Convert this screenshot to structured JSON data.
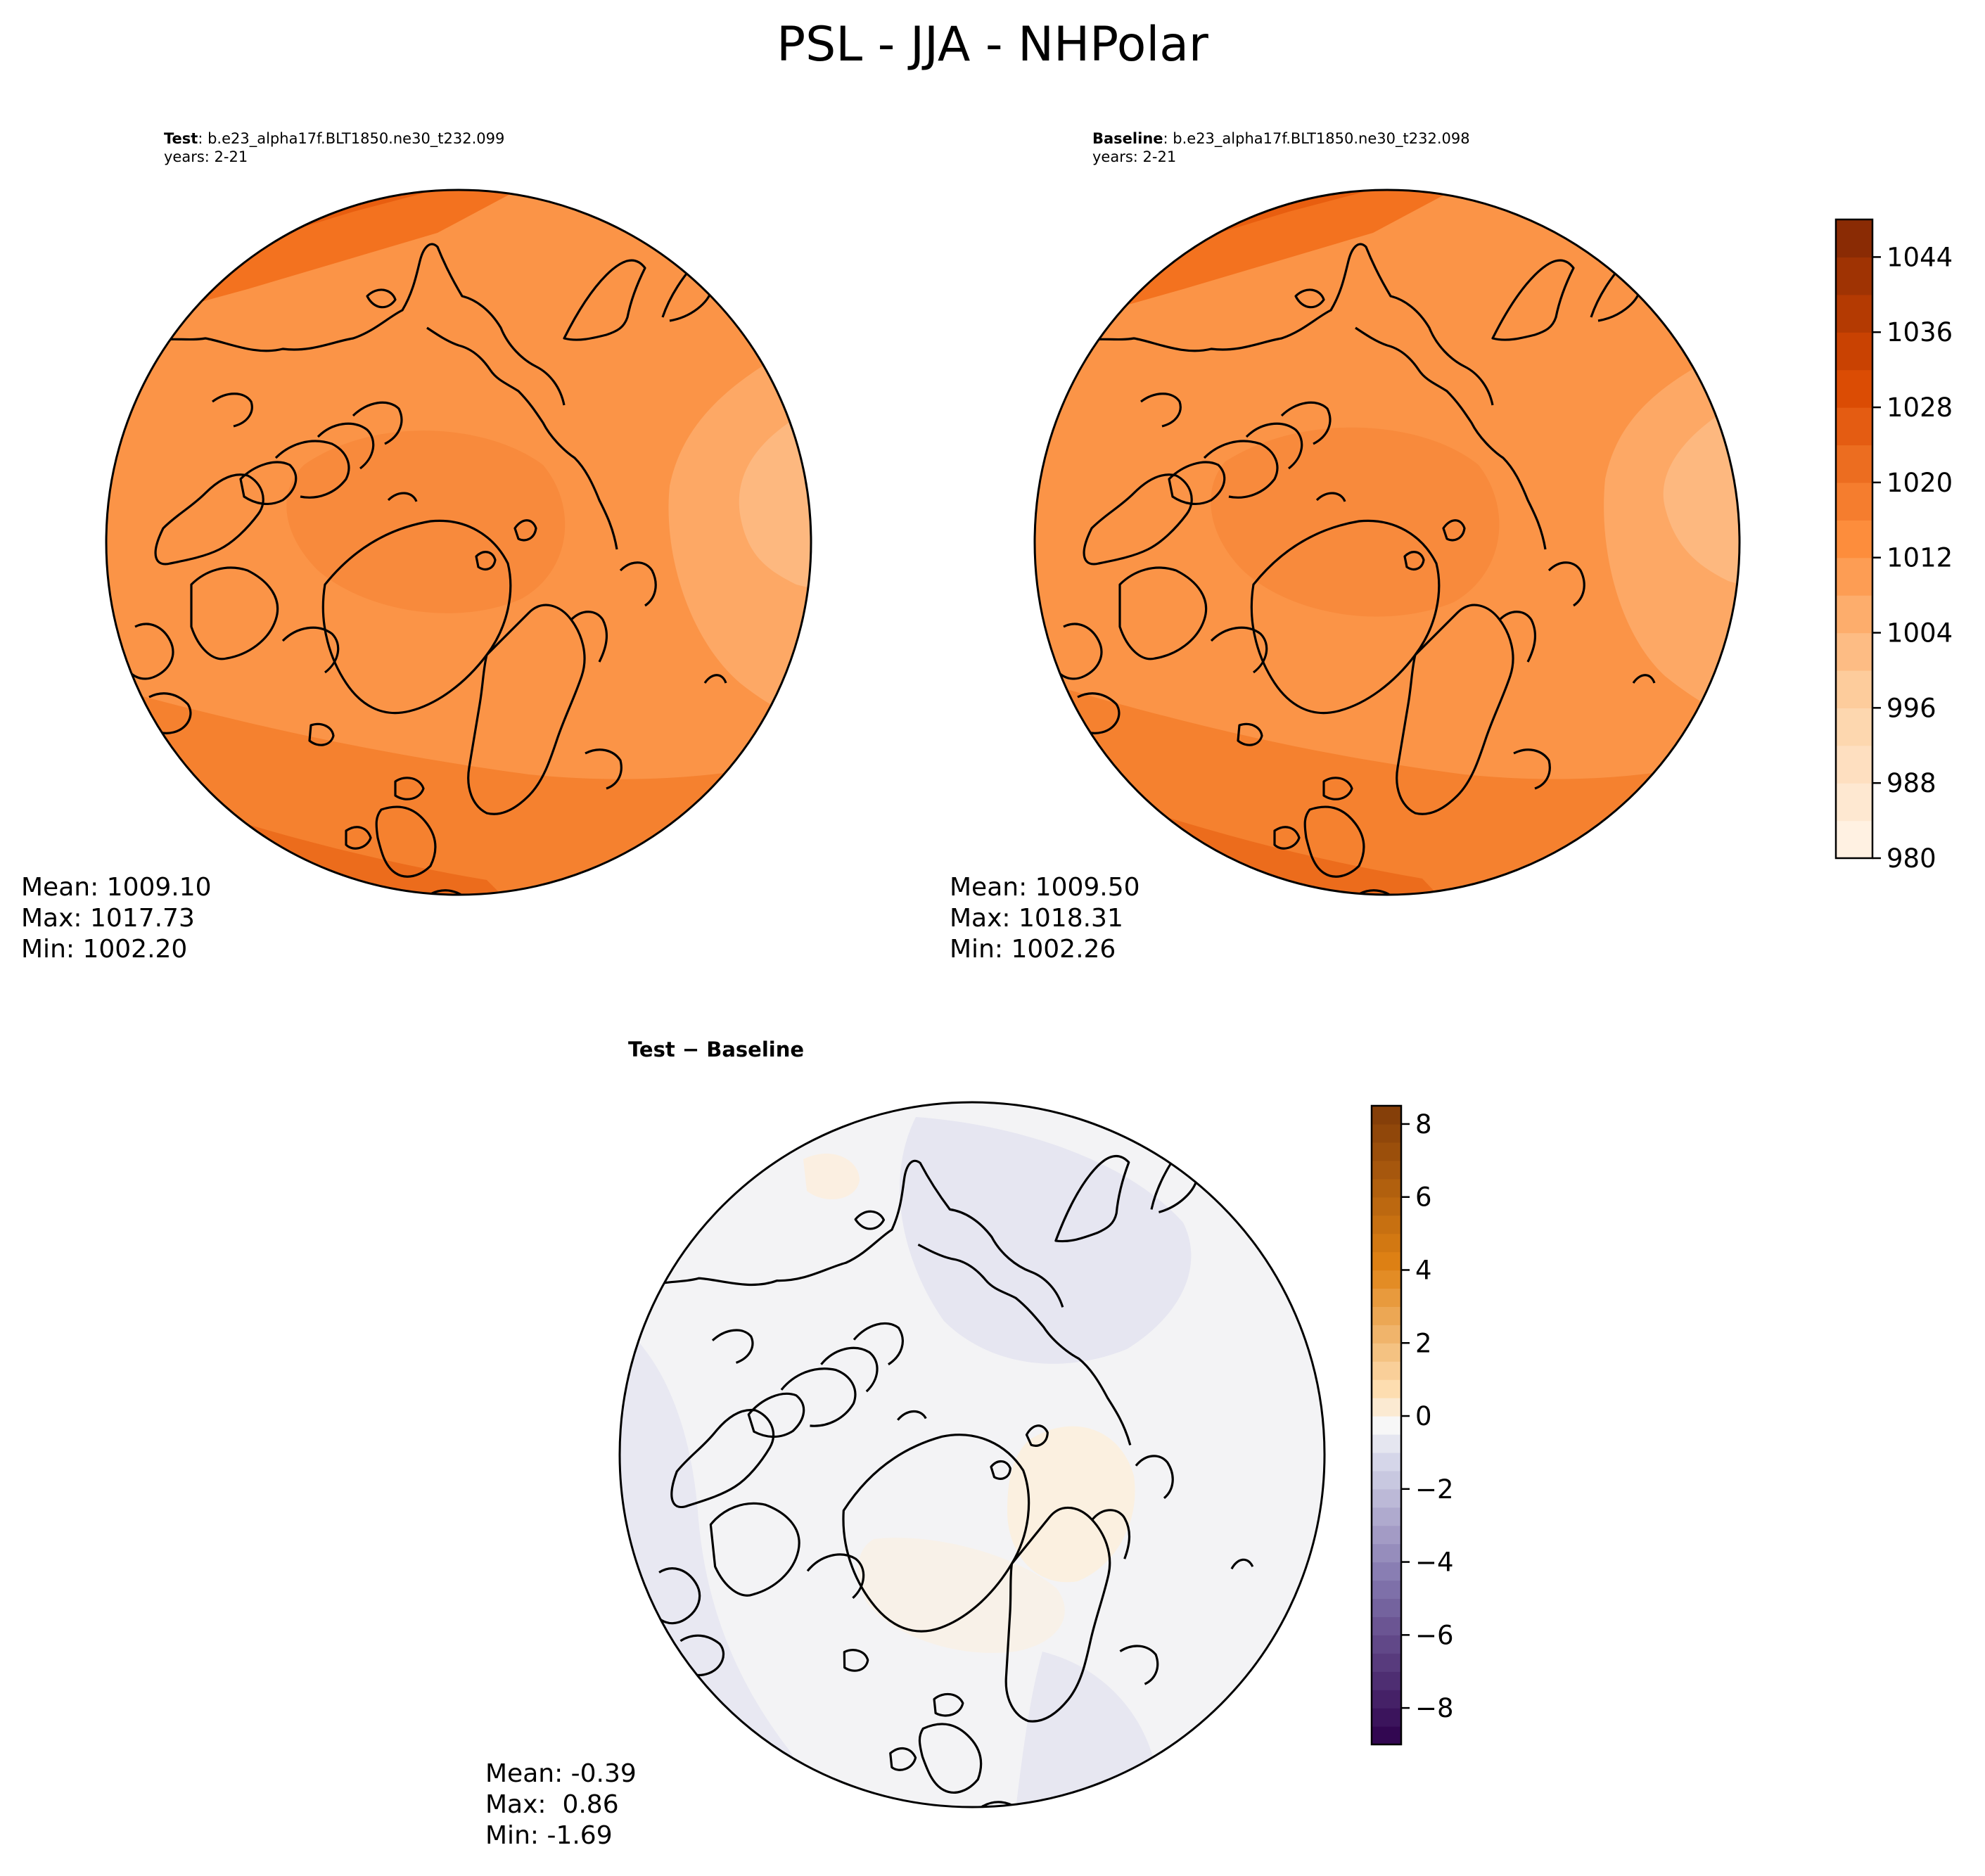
{
  "figure": {
    "title": "PSL - JJA - NHPolar"
  },
  "panels": [
    {
      "id": "test",
      "label_bold": "Test",
      "label_text": ": b.e23_alpha17f.BLT1850.ne30_t232.099",
      "years": "years: 2-21",
      "stats": {
        "mean": "Mean: 1009.10",
        "max": "Max: 1017.73",
        "min": "Min: 1002.20"
      }
    },
    {
      "id": "baseline",
      "label_bold": "Baseline",
      "label_text": ": b.e23_alpha17f.BLT1850.ne30_t232.098",
      "years": "years: 2-21",
      "stats": {
        "mean": "Mean: 1009.50",
        "max": "Max: 1018.31",
        "min": "Min: 1002.26"
      }
    },
    {
      "id": "difference",
      "label_bold": "Test − Baseline",
      "stats": {
        "mean": "Mean: -0.39",
        "max": "Max:  0.86",
        "min": "Min: -1.69"
      }
    }
  ],
  "colorbars": {
    "psl": {
      "colormap": "Oranges",
      "min": 980,
      "max": 1048,
      "step": 4,
      "ticks": [
        "980",
        "988",
        "996",
        "1004",
        "1012",
        "1020",
        "1028",
        "1036",
        "1044"
      ],
      "tick_values": [
        980,
        988,
        996,
        1004,
        1012,
        1020,
        1028,
        1036,
        1044
      ]
    },
    "diff": {
      "colormap": "PuOr_r",
      "min": -9,
      "max": 8.5,
      "step": 0.5,
      "ticks": [
        "−8",
        "−6",
        "−4",
        "−2",
        "0",
        "2",
        "4",
        "6",
        "8"
      ],
      "tick_values": [
        -8,
        -6,
        -4,
        -2,
        0,
        2,
        4,
        6,
        8
      ]
    }
  }
}
